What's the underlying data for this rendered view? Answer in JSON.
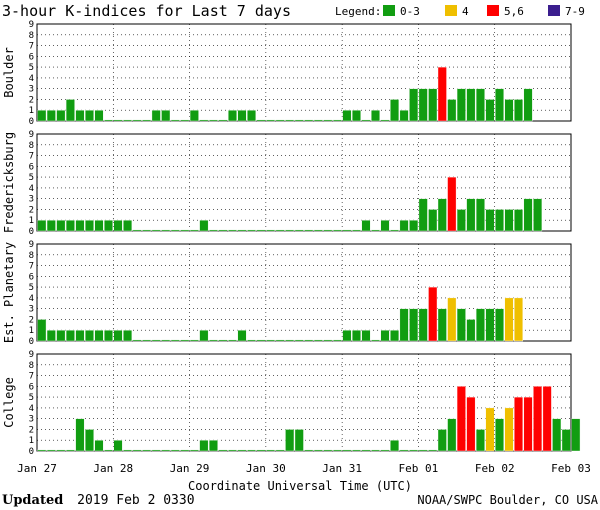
{
  "chart_data": {
    "type": "bar",
    "title": "3-hour K-indices for Last 7 days",
    "legend": {
      "label": "Legend:",
      "placement": "top-right",
      "items": [
        {
          "label": "0-3",
          "color": "#119d11"
        },
        {
          "label": "4",
          "color": "#efbf00"
        },
        {
          "label": "5,6",
          "color": "#ff0000"
        },
        {
          "label": "7-9",
          "color": "#3b1e8e"
        }
      ]
    },
    "xlabel": "Coordinate Universal Time (UTC)",
    "x_ticks": [
      "Jan 27",
      "Jan 28",
      "Jan 29",
      "Jan 30",
      "Jan 31",
      "Feb 01",
      "Feb 02",
      "Feb 03"
    ],
    "y_ticks": [
      "0",
      "1",
      "2",
      "3",
      "4",
      "5",
      "6",
      "7",
      "8",
      "9"
    ],
    "ylim": [
      0,
      9
    ],
    "grid": true,
    "intervals_per_day": 8,
    "panels": [
      {
        "name": "Boulder",
        "values": [
          1,
          1,
          1,
          2,
          1,
          1,
          1,
          0,
          0,
          0,
          0,
          0,
          1,
          1,
          0,
          0,
          1,
          0,
          0,
          0,
          1,
          1,
          1,
          0,
          0,
          0,
          0,
          0,
          0,
          0,
          0,
          0,
          1,
          1,
          0,
          1,
          0,
          2,
          1,
          3,
          3,
          3,
          5,
          2,
          3,
          3,
          3,
          2,
          3,
          2,
          2,
          3
        ]
      },
      {
        "name": "Fredericksburg",
        "values": [
          1,
          1,
          1,
          1,
          1,
          1,
          1,
          1,
          1,
          1,
          0,
          0,
          0,
          0,
          0,
          0,
          0,
          1,
          0,
          0,
          0,
          0,
          0,
          0,
          0,
          0,
          0,
          0,
          0,
          0,
          0,
          0,
          0,
          0,
          1,
          0,
          1,
          0,
          1,
          1,
          3,
          2,
          3,
          5,
          2,
          3,
          3,
          2,
          2,
          2,
          2,
          3,
          3
        ]
      },
      {
        "name": "Est. Planetary",
        "values": [
          2,
          1,
          1,
          1,
          1,
          1,
          1,
          1,
          1,
          1,
          0,
          0,
          0,
          0,
          0,
          0,
          0,
          1,
          0,
          0,
          0,
          1,
          0,
          0,
          0,
          0,
          0,
          0,
          0,
          0,
          0,
          0,
          1,
          1,
          1,
          0,
          1,
          1,
          3,
          3,
          3,
          5,
          3,
          4,
          3,
          2,
          3,
          3,
          3,
          4,
          4
        ]
      },
      {
        "name": "College",
        "values": [
          0,
          0,
          0,
          0,
          3,
          2,
          1,
          0,
          1,
          0,
          0,
          0,
          0,
          0,
          0,
          0,
          0,
          1,
          1,
          0,
          0,
          0,
          0,
          0,
          0,
          0,
          2,
          2,
          0,
          0,
          0,
          0,
          0,
          0,
          0,
          0,
          0,
          1,
          0,
          0,
          0,
          0,
          2,
          3,
          6,
          5,
          2,
          4,
          3,
          4,
          5,
          5,
          6,
          6,
          3,
          2,
          3
        ]
      }
    ]
  },
  "footer": {
    "updated_label": "Updated",
    "updated_value": "2019 Feb  2 0330",
    "source": "NOAA/SWPC Boulder, CO USA"
  }
}
